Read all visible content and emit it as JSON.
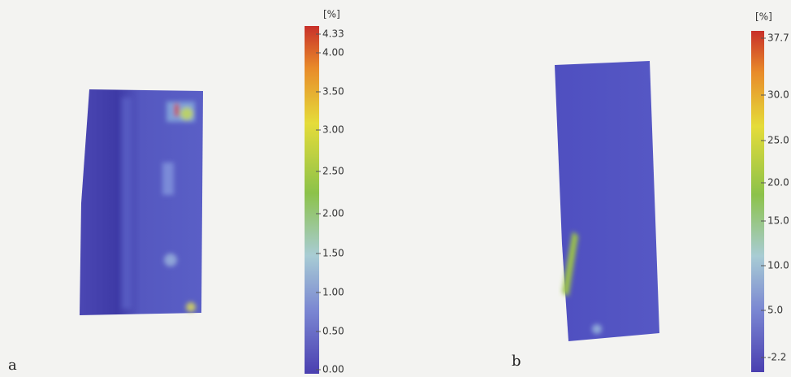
{
  "panels": [
    {
      "label": "a",
      "unit": "[%]",
      "ticks": [
        "4.33",
        "4.00",
        "3.50",
        "3.00",
        "2.50",
        "2.00",
        "1.50",
        "1.00",
        "0.50",
        "0.00"
      ]
    },
    {
      "label": "b",
      "unit": "[%]",
      "ticks": [
        "37.7",
        "30.0",
        "25.0",
        "20.0",
        "15.0",
        "10.0",
        "5.0",
        "-2.2"
      ]
    }
  ]
}
